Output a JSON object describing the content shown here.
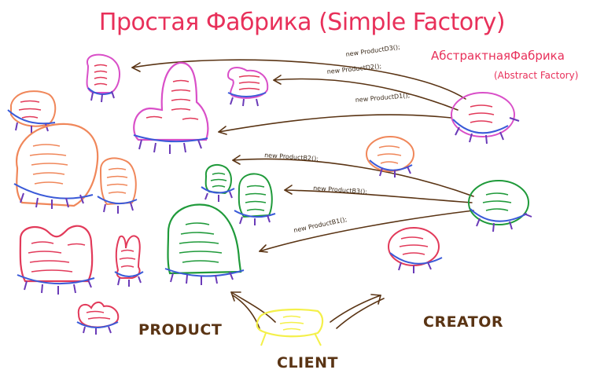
{
  "title": "Простая Фабрика (Simple Factory)",
  "abstract_factory": {
    "title": "АбстрактнаяФабрика",
    "subtitle": "(Abstract Factory)"
  },
  "calls": {
    "d3": "new ProductD3();",
    "d2": "new ProductD2();",
    "d1": "new ProductD1();",
    "b2": "new ProductB2();",
    "b3": "new ProductB3();",
    "b1": "new ProductB1();"
  },
  "labels": {
    "product": "PRODUCT",
    "creator": "CREATOR",
    "client": "CLIENT"
  },
  "colors": {
    "pink": "#d94fc8",
    "orange": "#f0875a",
    "green": "#1f9a3a",
    "red": "#e23a5a",
    "blue": "#3a5ad8",
    "purple": "#6a3ab8",
    "brown": "#5a3414",
    "yellow": "#f4f04a"
  }
}
